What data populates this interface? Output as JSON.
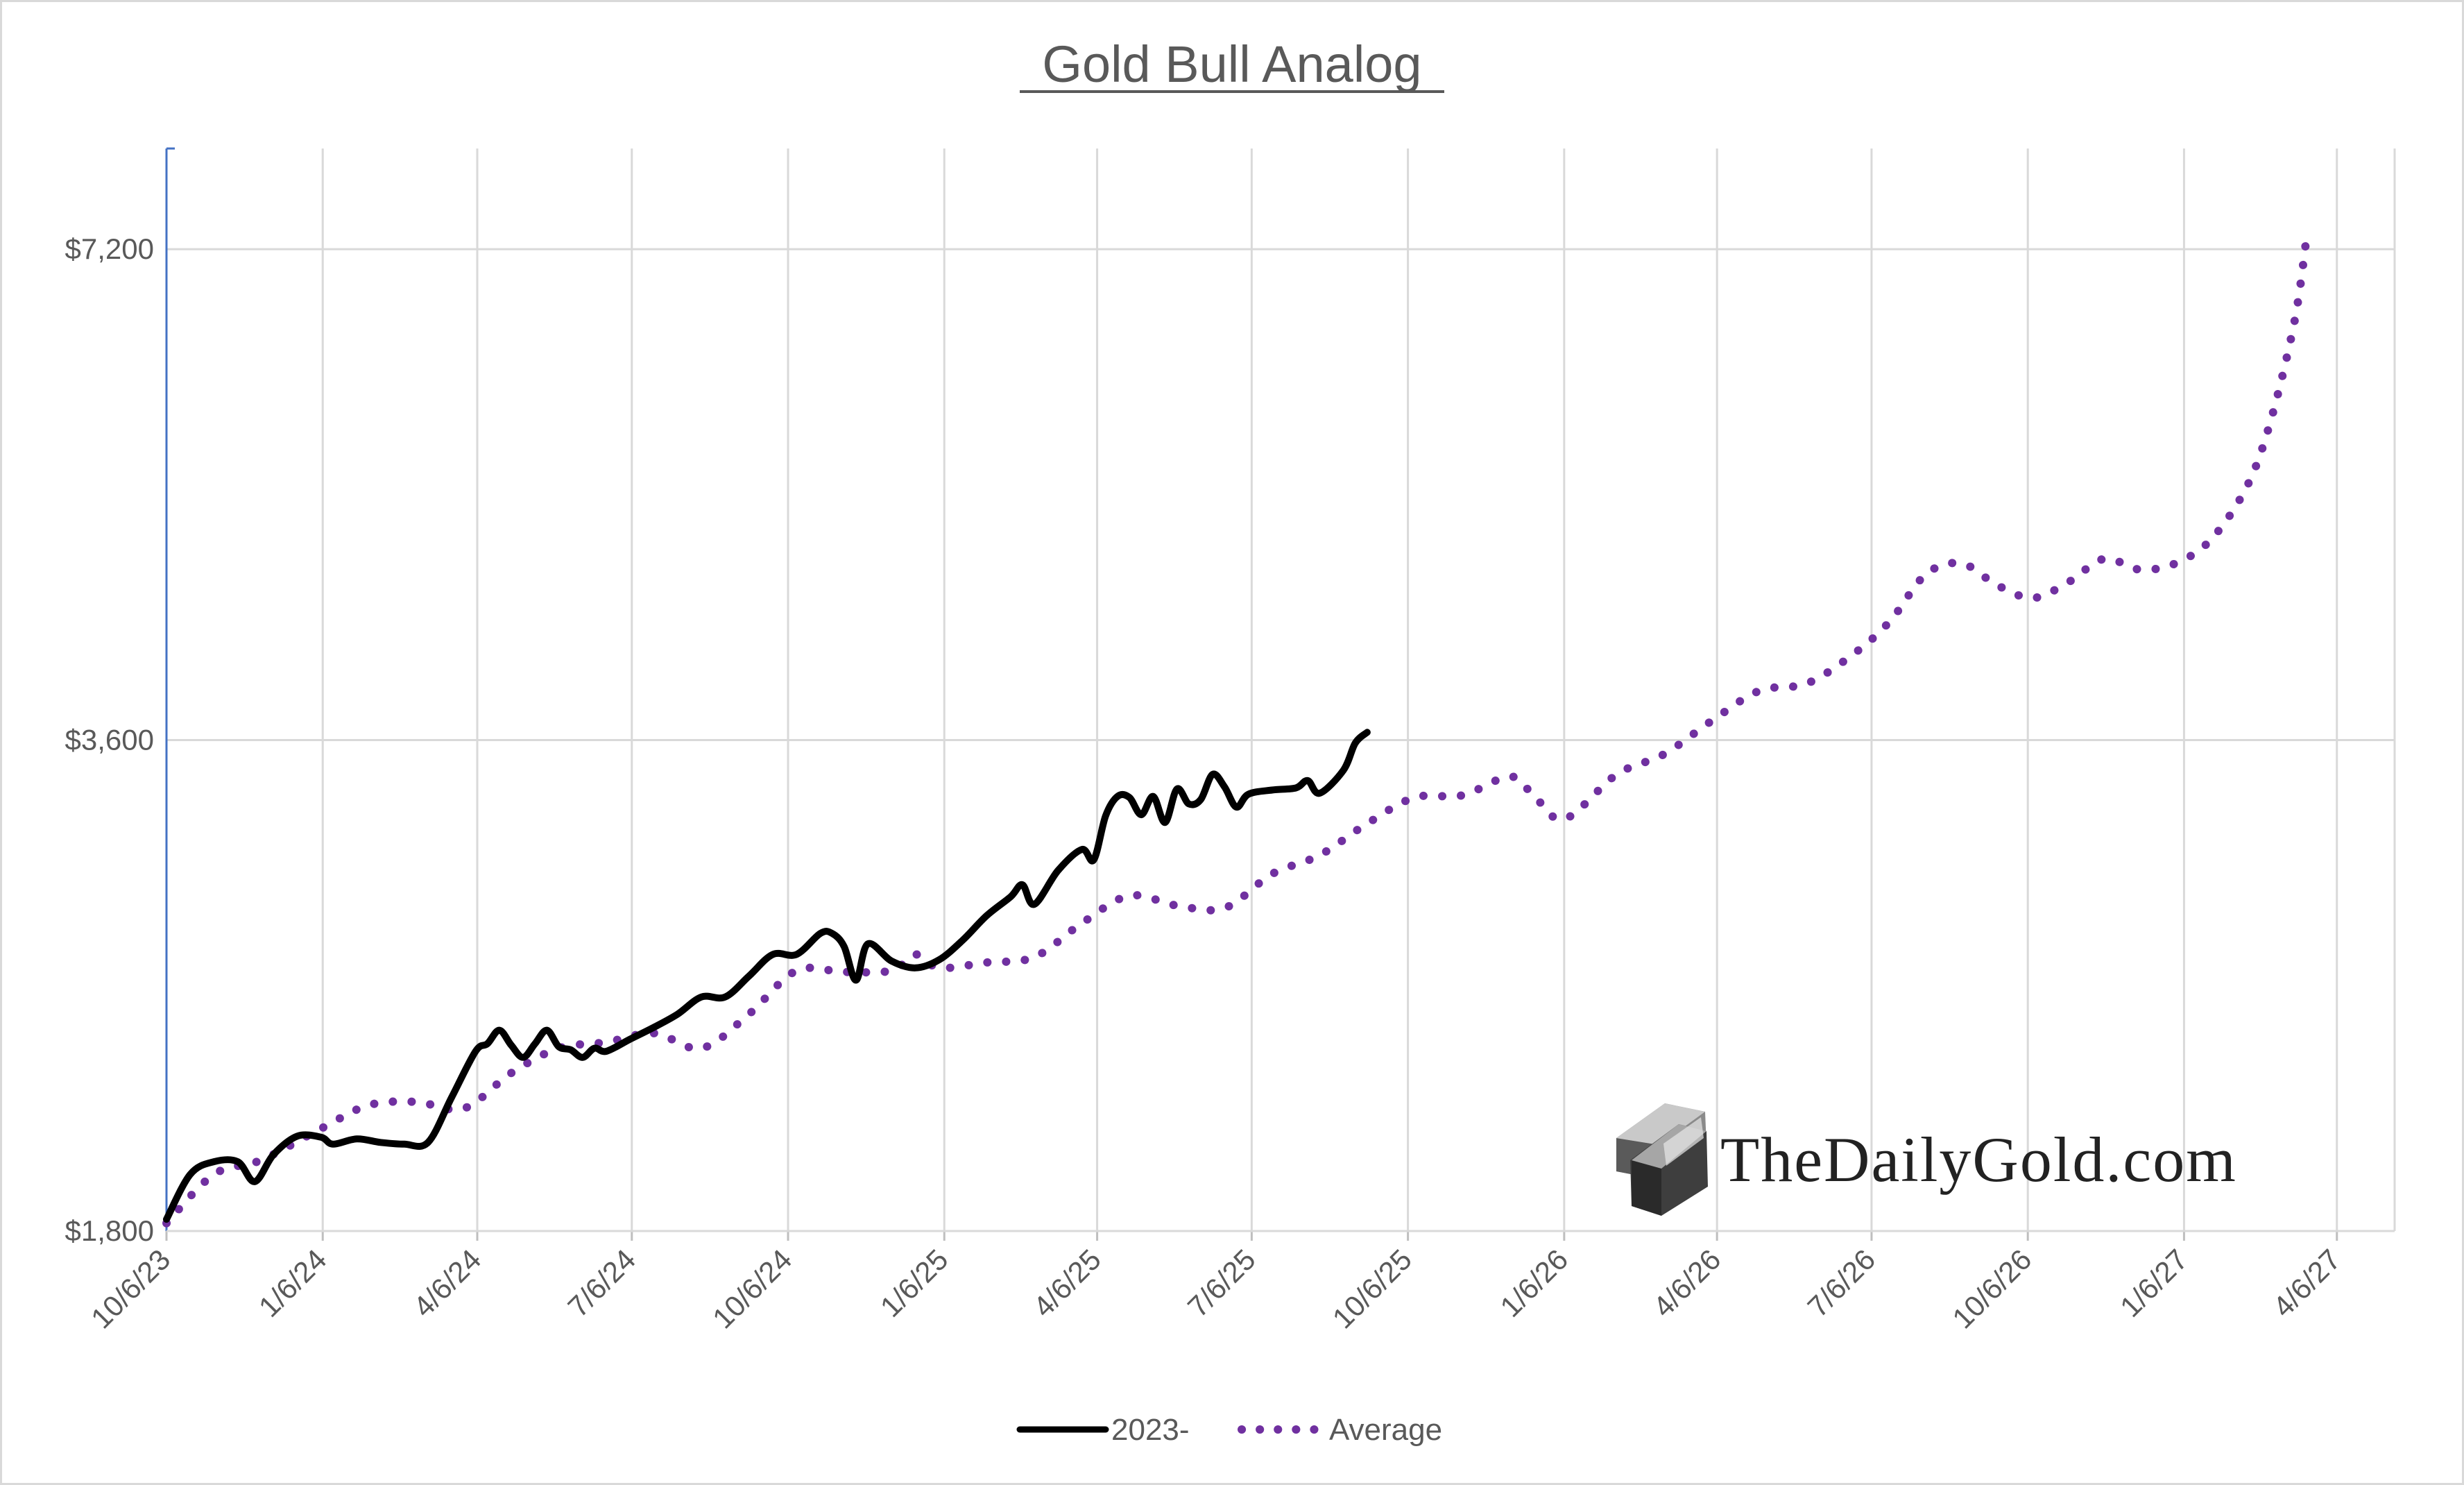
{
  "chart_data": {
    "type": "line",
    "title": "Gold Bull Analog",
    "xlabel": "",
    "ylabel": "",
    "x_start": "2023-10-06",
    "x_end": "2027-05-10",
    "x_ticks": [
      "10/6/23",
      "1/6/24",
      "4/6/24",
      "7/6/24",
      "10/6/24",
      "1/6/25",
      "4/6/25",
      "7/6/25",
      "10/6/25",
      "1/6/26",
      "4/6/26",
      "7/6/26",
      "10/6/26",
      "1/6/27",
      "4/6/27"
    ],
    "x_tick_dates": [
      "2023-10-06",
      "2024-01-06",
      "2024-04-06",
      "2024-07-06",
      "2024-10-06",
      "2025-01-06",
      "2025-04-06",
      "2025-07-06",
      "2025-10-06",
      "2026-01-06",
      "2026-04-06",
      "2026-07-06",
      "2026-10-06",
      "2027-01-06",
      "2027-04-06"
    ],
    "y_ticks": [
      1800,
      3600,
      7200
    ],
    "y_tick_labels": [
      "$1,800",
      "$3,600",
      "$7,200"
    ],
    "y_scale": "log",
    "ylim": [
      1800,
      8300
    ],
    "grid": true,
    "legend_position": "bottom",
    "series": [
      {
        "name": "2023-",
        "style": "solid",
        "color": "#000000",
        "points": [
          [
            "2023-10-06",
            1830
          ],
          [
            "2023-10-20",
            1950
          ],
          [
            "2023-11-03",
            1985
          ],
          [
            "2023-11-17",
            1985
          ],
          [
            "2023-11-27",
            1930
          ],
          [
            "2023-12-08",
            2005
          ],
          [
            "2023-12-22",
            2058
          ],
          [
            "2024-01-05",
            2055
          ],
          [
            "2024-01-12",
            2035
          ],
          [
            "2024-01-26",
            2050
          ],
          [
            "2024-02-09",
            2040
          ],
          [
            "2024-02-23",
            2035
          ],
          [
            "2024-03-08",
            2040
          ],
          [
            "2024-03-22",
            2175
          ],
          [
            "2024-04-05",
            2320
          ],
          [
            "2024-04-12",
            2345
          ],
          [
            "2024-04-19",
            2390
          ],
          [
            "2024-04-26",
            2340
          ],
          [
            "2024-05-03",
            2300
          ],
          [
            "2024-05-10",
            2345
          ],
          [
            "2024-05-17",
            2390
          ],
          [
            "2024-05-24",
            2335
          ],
          [
            "2024-05-31",
            2325
          ],
          [
            "2024-06-07",
            2300
          ],
          [
            "2024-06-14",
            2330
          ],
          [
            "2024-06-21",
            2320
          ],
          [
            "2024-07-05",
            2360
          ],
          [
            "2024-07-19",
            2400
          ],
          [
            "2024-08-02",
            2445
          ],
          [
            "2024-08-16",
            2505
          ],
          [
            "2024-08-30",
            2505
          ],
          [
            "2024-09-13",
            2580
          ],
          [
            "2024-09-27",
            2660
          ],
          [
            "2024-10-11",
            2660
          ],
          [
            "2024-10-25",
            2740
          ],
          [
            "2024-11-01",
            2740
          ],
          [
            "2024-11-08",
            2690
          ],
          [
            "2024-11-15",
            2565
          ],
          [
            "2024-11-22",
            2700
          ],
          [
            "2024-12-06",
            2635
          ],
          [
            "2024-12-20",
            2610
          ],
          [
            "2025-01-03",
            2640
          ],
          [
            "2025-01-17",
            2715
          ],
          [
            "2025-01-31",
            2810
          ],
          [
            "2025-02-14",
            2885
          ],
          [
            "2025-02-21",
            2935
          ],
          [
            "2025-02-28",
            2855
          ],
          [
            "2025-03-14",
            2995
          ],
          [
            "2025-03-28",
            3085
          ],
          [
            "2025-04-04",
            3040
          ],
          [
            "2025-04-11",
            3235
          ],
          [
            "2025-04-18",
            3325
          ],
          [
            "2025-04-25",
            3320
          ],
          [
            "2025-05-02",
            3240
          ],
          [
            "2025-05-09",
            3325
          ],
          [
            "2025-05-16",
            3205
          ],
          [
            "2025-05-23",
            3360
          ],
          [
            "2025-05-30",
            3290
          ],
          [
            "2025-06-06",
            3310
          ],
          [
            "2025-06-13",
            3430
          ],
          [
            "2025-06-20",
            3370
          ],
          [
            "2025-06-27",
            3275
          ],
          [
            "2025-07-04",
            3335
          ],
          [
            "2025-07-18",
            3355
          ],
          [
            "2025-08-01",
            3365
          ],
          [
            "2025-08-08",
            3400
          ],
          [
            "2025-08-15",
            3340
          ],
          [
            "2025-08-29",
            3450
          ],
          [
            "2025-09-05",
            3585
          ],
          [
            "2025-09-12",
            3640
          ]
        ]
      },
      {
        "name": "Average",
        "style": "dotted",
        "color": "#7030a0",
        "points": [
          [
            "2023-10-06",
            1820
          ],
          [
            "2023-11-03",
            1950
          ],
          [
            "2023-12-01",
            1990
          ],
          [
            "2024-01-05",
            2080
          ],
          [
            "2024-02-02",
            2150
          ],
          [
            "2024-03-01",
            2160
          ],
          [
            "2024-03-29",
            2140
          ],
          [
            "2024-04-26",
            2250
          ],
          [
            "2024-05-24",
            2330
          ],
          [
            "2024-06-21",
            2350
          ],
          [
            "2024-07-19",
            2380
          ],
          [
            "2024-08-16",
            2330
          ],
          [
            "2024-09-13",
            2445
          ],
          [
            "2024-10-11",
            2600
          ],
          [
            "2024-11-08",
            2595
          ],
          [
            "2024-12-06",
            2600
          ],
          [
            "2024-12-20",
            2660
          ],
          [
            "2025-01-03",
            2610
          ],
          [
            "2025-01-31",
            2630
          ],
          [
            "2025-02-28",
            2650
          ],
          [
            "2025-03-28",
            2780
          ],
          [
            "2025-04-25",
            2890
          ],
          [
            "2025-05-23",
            2850
          ],
          [
            "2025-06-20",
            2840
          ],
          [
            "2025-07-18",
            2980
          ],
          [
            "2025-08-15",
            3060
          ],
          [
            "2025-09-12",
            3200
          ],
          [
            "2025-10-10",
            3320
          ],
          [
            "2025-11-07",
            3330
          ],
          [
            "2025-12-05",
            3420
          ],
          [
            "2025-12-19",
            3330
          ],
          [
            "2026-01-06",
            3220
          ],
          [
            "2026-02-06",
            3430
          ],
          [
            "2026-03-06",
            3530
          ],
          [
            "2026-04-03",
            3700
          ],
          [
            "2026-05-01",
            3860
          ],
          [
            "2026-05-29",
            3900
          ],
          [
            "2026-06-26",
            4070
          ],
          [
            "2026-07-17",
            4260
          ],
          [
            "2026-08-07",
            4550
          ],
          [
            "2026-08-28",
            4620
          ],
          [
            "2026-09-18",
            4480
          ],
          [
            "2026-10-09",
            4400
          ],
          [
            "2026-10-30",
            4500
          ],
          [
            "2026-11-20",
            4650
          ],
          [
            "2026-12-11",
            4580
          ],
          [
            "2027-01-01",
            4620
          ],
          [
            "2027-01-22",
            4780
          ],
          [
            "2027-02-12",
            5150
          ],
          [
            "2027-02-26",
            5650
          ],
          [
            "2027-03-12",
            6500
          ],
          [
            "2027-03-19",
            7300
          ]
        ]
      }
    ]
  },
  "legend": {
    "items": [
      "2023-",
      "Average"
    ]
  },
  "watermark": {
    "text": "TheDailyGold.com"
  }
}
